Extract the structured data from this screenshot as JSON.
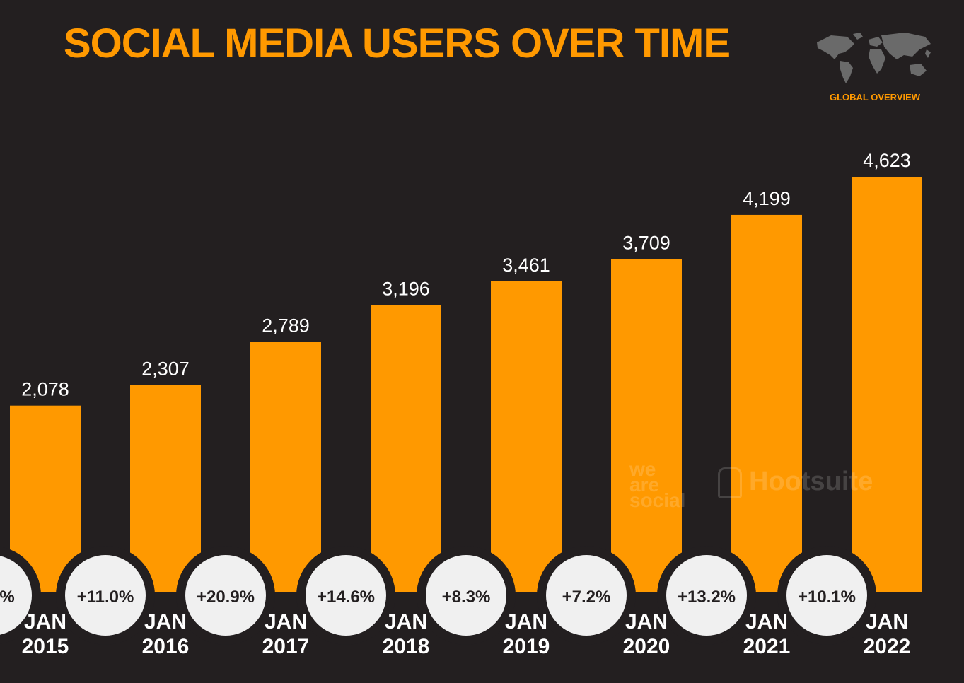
{
  "header": {
    "title": "SOCIAL MEDIA USERS OVER TIME",
    "map_caption": "GLOBAL OVERVIEW"
  },
  "watermarks": {
    "we_are_social": "we are social",
    "hootsuite": "Hootsuite"
  },
  "colors": {
    "background": "#231f20",
    "accent": "#ff9900",
    "text": "#ffffff",
    "badge_fill": "#f0f0f0",
    "badge_text": "#231f20"
  },
  "chart_data": {
    "type": "bar",
    "title": "SOCIAL MEDIA USERS OVER TIME",
    "xlabel": "",
    "ylabel": "",
    "categories": [
      "JAN 2015",
      "JAN 2016",
      "JAN 2017",
      "JAN 2018",
      "JAN 2019",
      "JAN 2020",
      "JAN 2021",
      "JAN 2022"
    ],
    "category_lines": [
      [
        "JAN",
        "2015"
      ],
      [
        "JAN",
        "2016"
      ],
      [
        "JAN",
        "2017"
      ],
      [
        "JAN",
        "2018"
      ],
      [
        "JAN",
        "2019"
      ],
      [
        "JAN",
        "2020"
      ],
      [
        "JAN",
        "2021"
      ],
      [
        "JAN",
        "2022"
      ]
    ],
    "values": [
      2078,
      2307,
      2789,
      3196,
      3461,
      3709,
      4199,
      4623
    ],
    "value_labels": [
      "2,078",
      "2,307",
      "2,789",
      "3,196",
      "3,461",
      "3,709",
      "4,199",
      "4,623"
    ],
    "growth_labels": [
      "%",
      "+11.0%",
      "+20.9%",
      "+14.6%",
      "+8.3%",
      "+7.2%",
      "+13.2%",
      "+10.1%"
    ],
    "ylim": [
      0,
      4623
    ],
    "grid": false,
    "legend": "none"
  }
}
